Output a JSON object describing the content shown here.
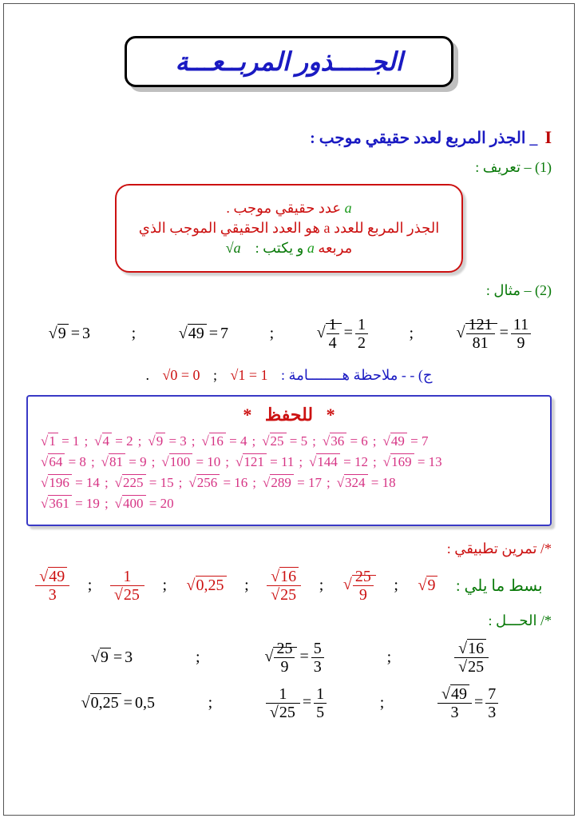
{
  "title": "الجـــــذور المربــعـــة",
  "section1": {
    "roman": "I",
    "text": "_ الجذر المربع لعدد حقيقي موجب :"
  },
  "h2_def": "(1) – تعريف :",
  "def": {
    "line1_pre": "عدد حقيقي موجب .",
    "line1_var": "a",
    "line2": "الجذر المربع للعدد a هو العدد الحقيقي الموجب الذي",
    "line3_pre": "مربعه",
    "line3_var": "a",
    "line3_writes": "و يكتب :",
    "line3_sqrt": "√a"
  },
  "h2_ex": "(2) – مثال :",
  "examples": [
    {
      "lhs": "9",
      "rhs": "3"
    },
    {
      "lhs": "49",
      "rhs": "7"
    },
    {
      "fracL": {
        "n": "1",
        "d": "4"
      },
      "fracR": {
        "n": "1",
        "d": "2"
      }
    },
    {
      "fracL": {
        "n": "121",
        "d": "81"
      },
      "fracR": {
        "n": "11",
        "d": "9"
      }
    }
  ],
  "note": {
    "label": "ج) - - ملاحظة هــــــــامة :",
    "eq1": "√1 = 1",
    "eq2": "√0 = 0"
  },
  "memo": {
    "title": "للحفظ",
    "rows": [
      [
        {
          "r": "1",
          "v": "1"
        },
        {
          "r": "4",
          "v": "2"
        },
        {
          "r": "9",
          "v": "3"
        },
        {
          "r": "16",
          "v": "4"
        },
        {
          "r": "25",
          "v": "5"
        },
        {
          "r": "36",
          "v": "6"
        },
        {
          "r": "49",
          "v": "7"
        }
      ],
      [
        {
          "r": "64",
          "v": "8"
        },
        {
          "r": "81",
          "v": "9"
        },
        {
          "r": "100",
          "v": "10"
        },
        {
          "r": "121",
          "v": "11"
        },
        {
          "r": "144",
          "v": "12"
        },
        {
          "r": "169",
          "v": "13"
        }
      ],
      [
        {
          "r": "196",
          "v": "14"
        },
        {
          "r": "225",
          "v": "15"
        },
        {
          "r": "256",
          "v": "16"
        },
        {
          "r": "289",
          "v": "17"
        },
        {
          "r": "324",
          "v": "18"
        }
      ],
      [
        {
          "r": "361",
          "v": "19"
        },
        {
          "r": "400",
          "v": "20"
        }
      ]
    ]
  },
  "exr_h": "*/ تمرين تطبيقي :",
  "exr_label": "بسط ما يلي :",
  "exr_items": [
    {
      "type": "sqrtfrac_over_int",
      "n": "49",
      "d": "3"
    },
    {
      "type": "one_over_sqrt",
      "d": "25"
    },
    {
      "type": "sqrtdec",
      "v": "0,25"
    },
    {
      "type": "sqrt_over_sqrt",
      "n": "16",
      "d": "25"
    },
    {
      "type": "sqrt_of_frac",
      "n": "25",
      "d": "9"
    },
    {
      "type": "sqrt",
      "v": "9"
    }
  ],
  "sol_h": "*/ الحـــل :",
  "sol_rows": [
    [
      {
        "lhs_type": "sqrt",
        "lhs": "9",
        "rhs": "3"
      },
      {
        "lhs_type": "sqrt_of_frac",
        "ln": "25",
        "ld": "9",
        "rhs_frac": {
          "n": "5",
          "d": "3"
        }
      },
      {
        "lhs_type": "sqrt_over_sqrt",
        "ln": "16",
        "ld": "25",
        "rhs": ""
      }
    ],
    [
      {
        "lhs_type": "sqrtdec",
        "lhs": "0,25",
        "rhs": "0,5"
      },
      {
        "lhs_type": "one_over_sqrt",
        "ld": "25",
        "rhs_frac": {
          "n": "1",
          "d": "5"
        }
      },
      {
        "lhs_type": "sqrtfrac_over_int",
        "ln": "49",
        "ld": "3",
        "rhs_frac": {
          "n": "7",
          "d": "3"
        }
      }
    ]
  ],
  "colors": {
    "blue": "#1a1ac2",
    "red": "#c11",
    "green": "#0a7a0a",
    "magenta": "#d63384"
  }
}
